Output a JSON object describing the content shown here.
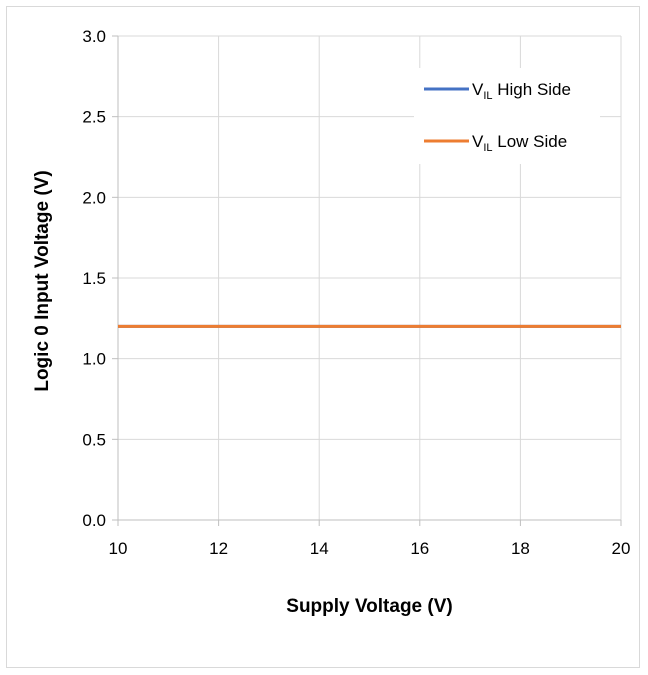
{
  "chart_data": {
    "type": "line",
    "xlabel": "Supply Voltage (V)",
    "ylabel": "Logic 0 Input Voltage (V)",
    "xlim": [
      10,
      20
    ],
    "ylim": [
      0,
      3.0
    ],
    "x_ticks": [
      10,
      12,
      14,
      16,
      18,
      20
    ],
    "y_ticks": [
      0.0,
      0.5,
      1.0,
      1.5,
      2.0,
      2.5,
      3.0
    ],
    "x_tick_labels": [
      "10",
      "12",
      "14",
      "16",
      "18",
      "20"
    ],
    "y_tick_labels": [
      "0.0",
      "0.5",
      "1.0",
      "1.5",
      "2.0",
      "2.5",
      "3.0"
    ],
    "grid": true,
    "legend_position": "top-right",
    "series": [
      {
        "name_main": "V",
        "name_sub": "IL",
        "name_rest": " High Side",
        "color": "#4472C4",
        "x": [
          10,
          20
        ],
        "y": [
          1.2,
          1.2
        ]
      },
      {
        "name_main": "V",
        "name_sub": "IL",
        "name_rest": " Low Side",
        "color": "#ED7D31",
        "x": [
          10,
          20
        ],
        "y": [
          1.2,
          1.2
        ]
      }
    ]
  }
}
